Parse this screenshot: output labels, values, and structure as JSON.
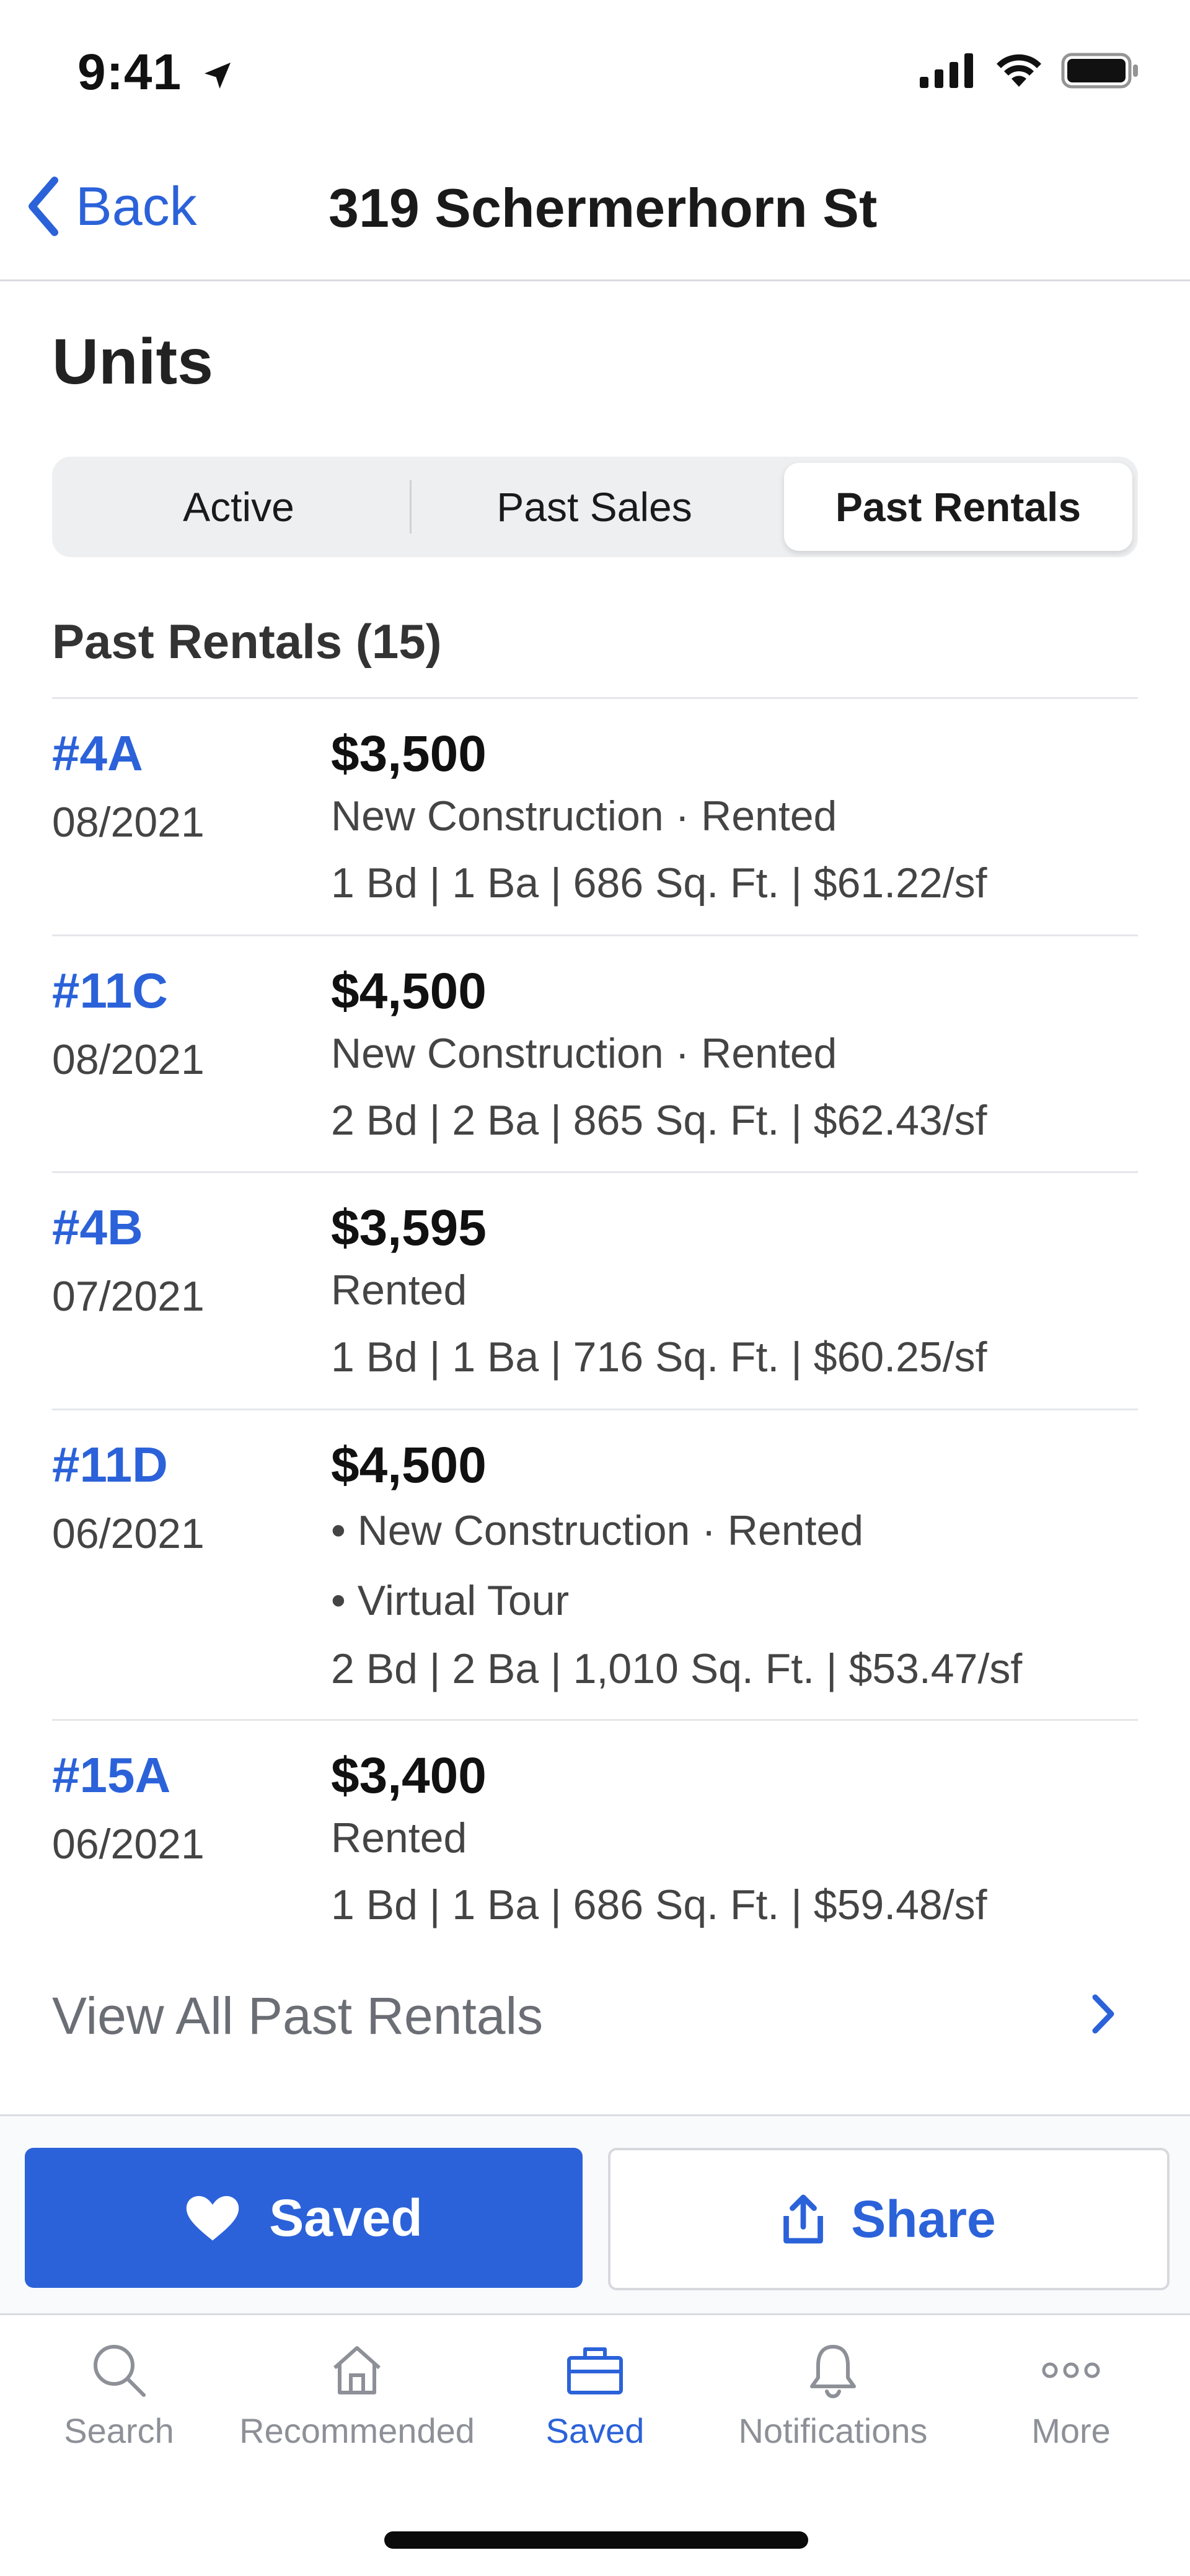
{
  "status_bar": {
    "time": "9:41"
  },
  "nav": {
    "back_label": "Back",
    "title": "319 Schermerhorn St"
  },
  "units": {
    "title": "Units",
    "segments": [
      {
        "label": "Active",
        "active": false
      },
      {
        "label": "Past Sales",
        "active": false
      },
      {
        "label": "Past Rentals",
        "active": true
      }
    ],
    "section_title": "Past Rentals (15)",
    "rows": [
      {
        "unit": "#4A",
        "date": "08/2021",
        "price": "$3,500",
        "lines": [
          "New Construction · Rented",
          "1 Bd | 1 Ba | 686 Sq. Ft. | $61.22/sf"
        ]
      },
      {
        "unit": "#11C",
        "date": "08/2021",
        "price": "$4,500",
        "lines": [
          "New Construction · Rented",
          "2 Bd | 2 Ba | 865 Sq. Ft. | $62.43/sf"
        ]
      },
      {
        "unit": "#4B",
        "date": "07/2021",
        "price": "$3,595",
        "lines": [
          "Rented",
          "1 Bd | 1 Ba | 716 Sq. Ft. | $60.25/sf"
        ]
      },
      {
        "unit": "#11D",
        "date": "06/2021",
        "price": "$4,500",
        "lines": [
          "• New Construction · Rented",
          "• Virtual Tour",
          "2 Bd | 2 Ba | 1,010 Sq. Ft. | $53.47/sf"
        ]
      },
      {
        "unit": "#15A",
        "date": "06/2021",
        "price": "$3,400",
        "lines": [
          "Rented",
          "1 Bd | 1 Ba | 686 Sq. Ft. | $59.48/sf"
        ]
      }
    ],
    "view_all_label": "View All Past Rentals"
  },
  "actions": {
    "saved_label": "Saved",
    "share_label": "Share"
  },
  "tabbar": {
    "items": [
      {
        "label": "Search",
        "icon": "search-icon",
        "active": false
      },
      {
        "label": "Recommended",
        "icon": "home-icon",
        "active": false
      },
      {
        "label": "Saved",
        "icon": "briefcase-icon",
        "active": true
      },
      {
        "label": "Notifications",
        "icon": "bell-icon",
        "active": false
      },
      {
        "label": "More",
        "icon": "more-icon",
        "active": false
      }
    ]
  },
  "colors": {
    "accent": "#2b62d9",
    "muted": "#8d9097",
    "divider": "#e4e6ea"
  }
}
